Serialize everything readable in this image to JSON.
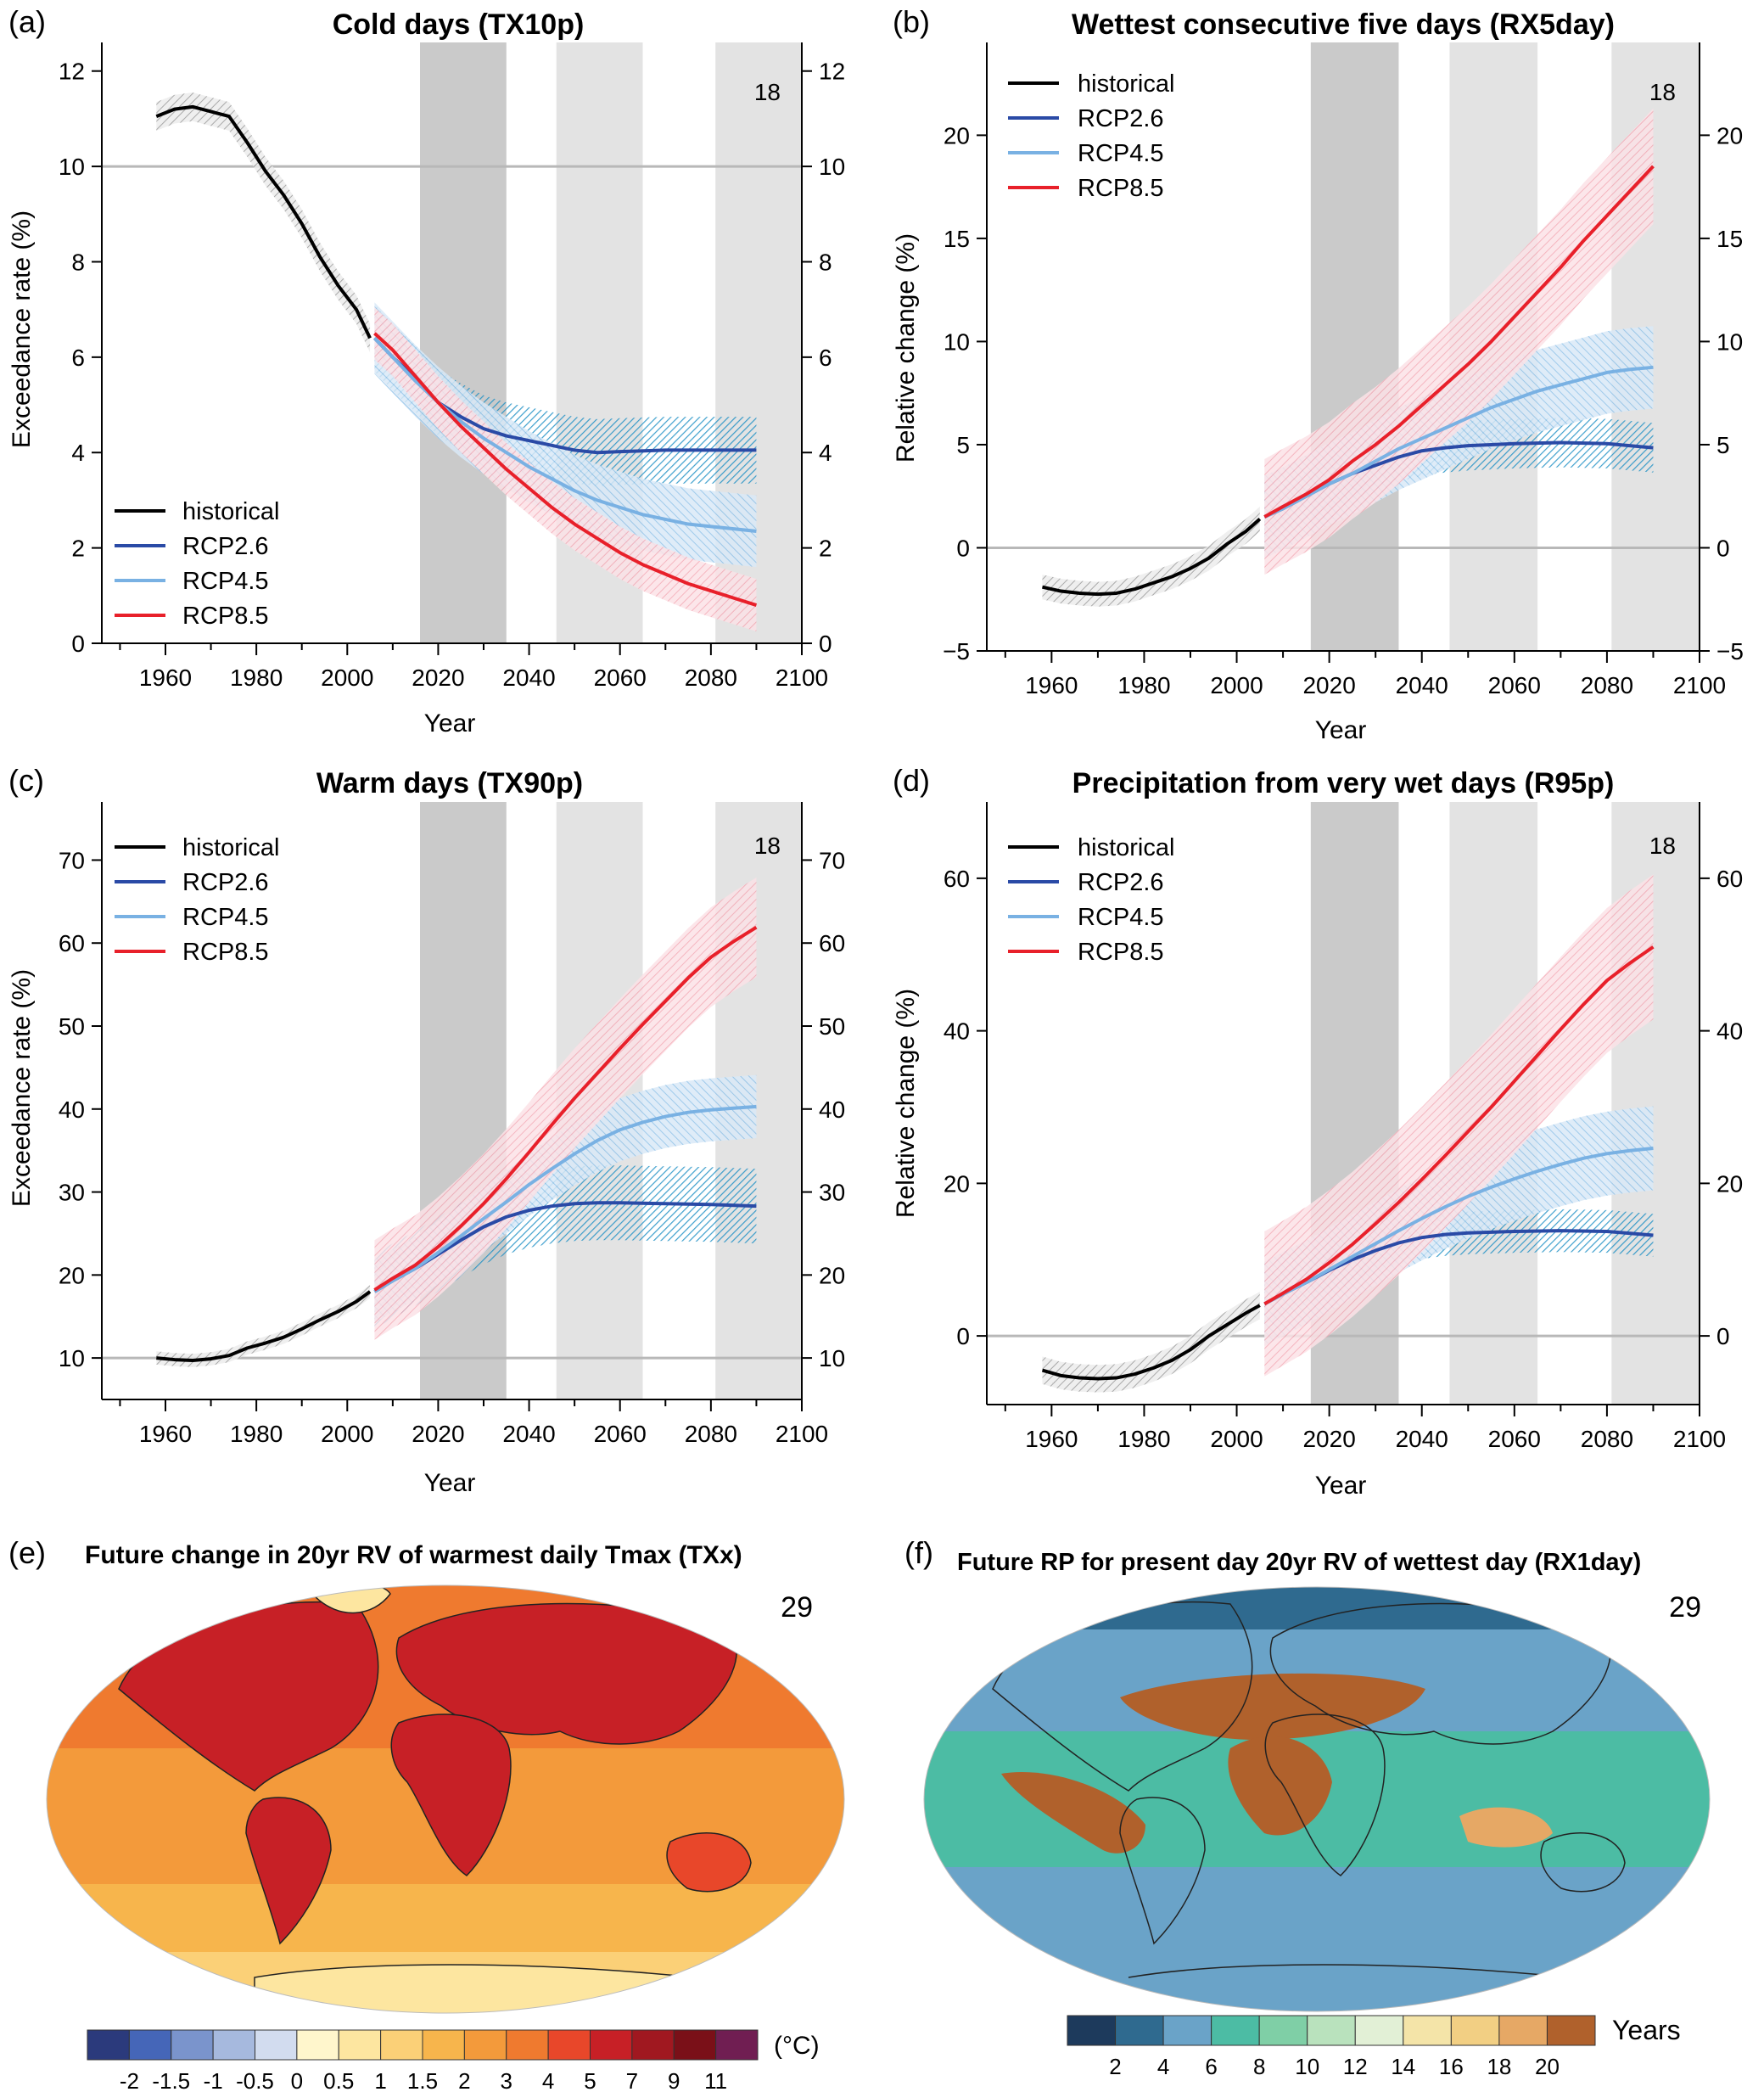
{
  "panels": [
    {
      "id": "a",
      "label": "(a)",
      "title": "Cold days (TX10p)",
      "ylabel": "Exceedance rate (%)",
      "xlabel": "Year",
      "model_count": "18",
      "legend_items": [
        "historical",
        "RCP2.6",
        "RCP4.5",
        "RCP8.5"
      ],
      "legend_position": "bottom-left"
    },
    {
      "id": "b",
      "label": "(b)",
      "title": "Wettest consecutive five days (RX5day)",
      "ylabel": "Relative change (%)",
      "xlabel": "Year",
      "model_count": "18",
      "legend_items": [
        "historical",
        "RCP2.6",
        "RCP4.5",
        "RCP8.5"
      ],
      "legend_position": "top-left"
    },
    {
      "id": "c",
      "label": "(c)",
      "title": "Warm days (TX90p)",
      "ylabel": "Exceedance rate (%)",
      "xlabel": "Year",
      "model_count": "18",
      "legend_items": [
        "historical",
        "RCP2.6",
        "RCP4.5",
        "RCP8.5"
      ],
      "legend_position": "top-left"
    },
    {
      "id": "d",
      "label": "(d)",
      "title": "Precipitation from very wet days (R95p)",
      "ylabel": "Relative change (%)",
      "xlabel": "Year",
      "model_count": "18",
      "legend_items": [
        "historical",
        "RCP2.6",
        "RCP4.5",
        "RCP8.5"
      ],
      "legend_position": "top-left"
    }
  ],
  "maps": [
    {
      "id": "e",
      "label": "(e)",
      "title": "Future change in 20yr RV of warmest daily Tmax (TXx)",
      "model_count": "29",
      "colorbar_ticks": [
        "-2",
        "-1.5",
        "-1",
        "-0.5",
        "0",
        "0.5",
        "1",
        "1.5",
        "2",
        "3",
        "4",
        "5",
        "7",
        "9",
        "11"
      ],
      "colorbar_unit": "(°C)",
      "colorbar_colors": [
        "#2b3a7c",
        "#4566b8",
        "#7a94cc",
        "#a6b9de",
        "#d2dcef",
        "#fff6cc",
        "#fde6a0",
        "#fbd077",
        "#f7b54c",
        "#f39a3b",
        "#ef7a2f",
        "#e8472a",
        "#c72026",
        "#a01820",
        "#7a1018",
        "#701e52"
      ]
    },
    {
      "id": "f",
      "label": "(f)",
      "title": "Future RP for present day 20yr RV of wettest day (RX1day)",
      "model_count": "29",
      "colorbar_ticks": [
        "2",
        "4",
        "6",
        "8",
        "10",
        "12",
        "14",
        "16",
        "18",
        "20"
      ],
      "colorbar_unit": "Years",
      "colorbar_colors": [
        "#1d3a5c",
        "#2f6a8f",
        "#6aa3c8",
        "#4cbca4",
        "#7fcfa6",
        "#b9e2bd",
        "#e2f0d6",
        "#f4e4a8",
        "#f2cf83",
        "#e6a865",
        "#b0612c"
      ]
    }
  ],
  "series_colors": {
    "historical": "#000000",
    "RCP2.6": "#2a4aa6",
    "RCP4.5": "#79b1e3",
    "RCP8.5": "#e8202a"
  },
  "chart_data": [
    {
      "type": "line",
      "panel": "a",
      "title": "Cold days (TX10p)",
      "xlabel": "Year",
      "ylabel": "Exceedance rate (%)",
      "xlim": [
        1946,
        2100
      ],
      "ylim": [
        0,
        12.6
      ],
      "xticks": [
        1960,
        1980,
        2000,
        2020,
        2040,
        2060,
        2080,
        2100
      ],
      "yticks": [
        0,
        2,
        4,
        6,
        8,
        10,
        12
      ],
      "reference_line": 10,
      "shaded_periods": [
        [
          2016,
          2035
        ],
        [
          2046,
          2065
        ],
        [
          2081,
          2100
        ]
      ],
      "series": [
        {
          "name": "historical",
          "x": [
            1958,
            1962,
            1966,
            1970,
            1974,
            1978,
            1982,
            1986,
            1990,
            1994,
            1998,
            2002,
            2005
          ],
          "y": [
            11.05,
            11.2,
            11.25,
            11.15,
            11.05,
            10.5,
            9.9,
            9.4,
            8.8,
            8.1,
            7.5,
            7.0,
            6.4
          ],
          "spread": 0.3
        },
        {
          "name": "RCP2.6",
          "x": [
            2006,
            2010,
            2015,
            2020,
            2025,
            2030,
            2035,
            2040,
            2045,
            2050,
            2055,
            2060,
            2070,
            2080,
            2090
          ],
          "y": [
            6.4,
            6.0,
            5.55,
            5.05,
            4.75,
            4.5,
            4.35,
            4.25,
            4.15,
            4.05,
            4.0,
            4.02,
            4.05,
            4.05,
            4.05
          ],
          "spread": 0.7
        },
        {
          "name": "RCP4.5",
          "x": [
            2006,
            2010,
            2015,
            2020,
            2025,
            2030,
            2035,
            2040,
            2045,
            2050,
            2055,
            2060,
            2065,
            2070,
            2075,
            2080,
            2085,
            2090
          ],
          "y": [
            6.4,
            6.0,
            5.5,
            5.05,
            4.65,
            4.3,
            4.0,
            3.7,
            3.45,
            3.2,
            3.0,
            2.85,
            2.7,
            2.6,
            2.5,
            2.45,
            2.4,
            2.35
          ],
          "spread": 0.75
        },
        {
          "name": "RCP8.5",
          "x": [
            2006,
            2010,
            2015,
            2020,
            2025,
            2030,
            2035,
            2040,
            2045,
            2050,
            2055,
            2060,
            2065,
            2070,
            2075,
            2080,
            2085,
            2090
          ],
          "y": [
            6.5,
            6.15,
            5.6,
            5.05,
            4.55,
            4.1,
            3.65,
            3.25,
            2.85,
            2.5,
            2.2,
            1.9,
            1.65,
            1.45,
            1.25,
            1.1,
            0.95,
            0.8
          ],
          "spread": 0.55
        }
      ]
    },
    {
      "type": "line",
      "panel": "b",
      "title": "Wettest consecutive five days (RX5day)",
      "xlabel": "Year",
      "ylabel": "Relative change (%)",
      "xlim": [
        1946,
        2100
      ],
      "ylim": [
        -5,
        24.5
      ],
      "xticks": [
        1960,
        1980,
        2000,
        2020,
        2040,
        2060,
        2080,
        2100
      ],
      "yticks": [
        -5,
        0,
        5,
        10,
        15,
        20
      ],
      "reference_line": 0,
      "shaded_periods": [
        [
          2016,
          2035
        ],
        [
          2046,
          2065
        ],
        [
          2081,
          2100
        ]
      ],
      "series": [
        {
          "name": "historical",
          "x": [
            1958,
            1962,
            1966,
            1970,
            1974,
            1978,
            1982,
            1986,
            1990,
            1994,
            1998,
            2002,
            2005
          ],
          "y": [
            -1.9,
            -2.1,
            -2.2,
            -2.25,
            -2.2,
            -2.0,
            -1.7,
            -1.4,
            -1.0,
            -0.5,
            0.2,
            0.8,
            1.4
          ],
          "spread": 0.6
        },
        {
          "name": "RCP2.6",
          "x": [
            2006,
            2010,
            2015,
            2020,
            2025,
            2030,
            2035,
            2040,
            2045,
            2050,
            2055,
            2060,
            2070,
            2080,
            2090
          ],
          "y": [
            1.5,
            1.9,
            2.5,
            3.1,
            3.6,
            4.0,
            4.4,
            4.7,
            4.85,
            4.95,
            5.0,
            5.05,
            5.1,
            5.05,
            4.85
          ],
          "spread": 1.2
        },
        {
          "name": "RCP4.5",
          "x": [
            2006,
            2010,
            2015,
            2020,
            2025,
            2030,
            2035,
            2040,
            2045,
            2050,
            2055,
            2060,
            2065,
            2070,
            2075,
            2080,
            2085,
            2090
          ],
          "y": [
            1.5,
            1.9,
            2.5,
            3.1,
            3.6,
            4.2,
            4.8,
            5.3,
            5.8,
            6.3,
            6.8,
            7.2,
            7.6,
            7.9,
            8.2,
            8.5,
            8.65,
            8.75
          ],
          "spread": 2.0
        },
        {
          "name": "RCP8.5",
          "x": [
            2006,
            2010,
            2015,
            2020,
            2025,
            2030,
            2035,
            2040,
            2045,
            2050,
            2055,
            2060,
            2065,
            2070,
            2075,
            2080,
            2085,
            2090
          ],
          "y": [
            1.5,
            2.0,
            2.6,
            3.3,
            4.2,
            5.0,
            5.9,
            6.9,
            7.9,
            8.9,
            10.0,
            11.2,
            12.4,
            13.6,
            14.9,
            16.1,
            17.3,
            18.5
          ],
          "spread": 2.8
        }
      ]
    },
    {
      "type": "line",
      "panel": "c",
      "title": "Warm days (TX90p)",
      "xlabel": "Year",
      "ylabel": "Exceedance rate (%)",
      "xlim": [
        1946,
        2100
      ],
      "ylim": [
        5,
        77
      ],
      "xticks": [
        1960,
        1980,
        2000,
        2020,
        2040,
        2060,
        2080,
        2100
      ],
      "yticks": [
        10,
        20,
        30,
        40,
        50,
        60,
        70
      ],
      "reference_line": 10,
      "shaded_periods": [
        [
          2016,
          2035
        ],
        [
          2046,
          2065
        ],
        [
          2081,
          2100
        ]
      ],
      "series": [
        {
          "name": "historical",
          "x": [
            1958,
            1962,
            1966,
            1970,
            1974,
            1978,
            1982,
            1986,
            1990,
            1994,
            1998,
            2002,
            2005
          ],
          "y": [
            10.0,
            9.8,
            9.7,
            9.9,
            10.3,
            11.2,
            11.8,
            12.5,
            13.5,
            14.6,
            15.6,
            16.8,
            18.0
          ],
          "spread": 0.8
        },
        {
          "name": "RCP2.6",
          "x": [
            2006,
            2010,
            2015,
            2020,
            2025,
            2030,
            2035,
            2040,
            2045,
            2050,
            2055,
            2060,
            2070,
            2080,
            2090
          ],
          "y": [
            18.0,
            19.3,
            20.8,
            22.5,
            24.2,
            25.8,
            27.0,
            27.8,
            28.3,
            28.6,
            28.7,
            28.7,
            28.6,
            28.5,
            28.3
          ],
          "spread": 4.5
        },
        {
          "name": "RCP4.5",
          "x": [
            2006,
            2010,
            2015,
            2020,
            2025,
            2030,
            2035,
            2040,
            2045,
            2050,
            2055,
            2060,
            2065,
            2070,
            2075,
            2080,
            2085,
            2090
          ],
          "y": [
            18.0,
            19.3,
            20.8,
            22.7,
            24.7,
            26.8,
            28.8,
            30.9,
            32.8,
            34.6,
            36.2,
            37.5,
            38.4,
            39.1,
            39.6,
            39.9,
            40.1,
            40.3
          ],
          "spread": 3.8
        },
        {
          "name": "RCP8.5",
          "x": [
            2006,
            2010,
            2015,
            2020,
            2025,
            2030,
            2035,
            2040,
            2045,
            2050,
            2055,
            2060,
            2065,
            2070,
            2075,
            2080,
            2085,
            2090
          ],
          "y": [
            18.2,
            19.6,
            21.2,
            23.4,
            25.9,
            28.6,
            31.6,
            34.8,
            38.1,
            41.3,
            44.3,
            47.3,
            50.2,
            53.0,
            55.8,
            58.3,
            60.2,
            61.9
          ],
          "spread": 6.0
        }
      ]
    },
    {
      "type": "line",
      "panel": "d",
      "title": "Precipitation from very wet days (R95p)",
      "xlabel": "Year",
      "ylabel": "Relative change (%)",
      "xlim": [
        1946,
        2100
      ],
      "ylim": [
        -9,
        70
      ],
      "xticks": [
        1960,
        1980,
        2000,
        2020,
        2040,
        2060,
        2080,
        2100
      ],
      "yticks": [
        0,
        20,
        40,
        60
      ],
      "reference_line": 0,
      "shaded_periods": [
        [
          2016,
          2035
        ],
        [
          2046,
          2065
        ],
        [
          2081,
          2100
        ]
      ],
      "series": [
        {
          "name": "historical",
          "x": [
            1958,
            1962,
            1966,
            1970,
            1974,
            1978,
            1982,
            1986,
            1990,
            1994,
            1998,
            2002,
            2005
          ],
          "y": [
            -4.5,
            -5.2,
            -5.5,
            -5.6,
            -5.5,
            -5.0,
            -4.2,
            -3.2,
            -1.8,
            0.0,
            1.5,
            3.0,
            4.0
          ],
          "spread": 1.8
        },
        {
          "name": "RCP2.6",
          "x": [
            2006,
            2010,
            2015,
            2020,
            2025,
            2030,
            2035,
            2040,
            2045,
            2050,
            2055,
            2060,
            2070,
            2080,
            2090
          ],
          "y": [
            4.2,
            5.5,
            7.0,
            8.6,
            10.0,
            11.2,
            12.2,
            12.9,
            13.3,
            13.5,
            13.6,
            13.7,
            13.8,
            13.7,
            13.2
          ],
          "spread": 2.8
        },
        {
          "name": "RCP4.5",
          "x": [
            2006,
            2010,
            2015,
            2020,
            2025,
            2030,
            2035,
            2040,
            2045,
            2050,
            2055,
            2060,
            2065,
            2070,
            2075,
            2080,
            2085,
            2090
          ],
          "y": [
            4.2,
            5.5,
            7.0,
            8.7,
            10.4,
            12.1,
            13.8,
            15.4,
            16.9,
            18.3,
            19.5,
            20.6,
            21.6,
            22.5,
            23.3,
            23.9,
            24.3,
            24.6
          ],
          "spread": 5.5
        },
        {
          "name": "RCP8.5",
          "x": [
            2006,
            2010,
            2015,
            2020,
            2025,
            2030,
            2035,
            2040,
            2045,
            2050,
            2055,
            2060,
            2065,
            2070,
            2075,
            2080,
            2085,
            2090
          ],
          "y": [
            4.2,
            5.6,
            7.4,
            9.6,
            12.0,
            14.7,
            17.5,
            20.5,
            23.6,
            26.8,
            30.0,
            33.4,
            36.8,
            40.2,
            43.5,
            46.6,
            48.9,
            51.0
          ],
          "spread": 9.5
        }
      ]
    }
  ]
}
